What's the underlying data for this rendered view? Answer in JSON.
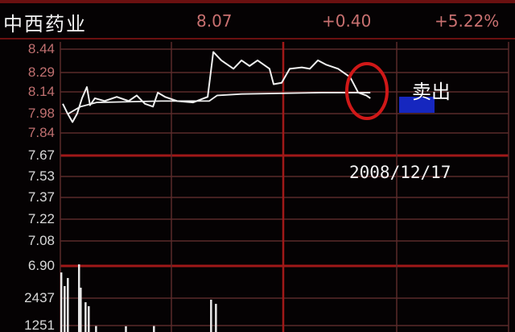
{
  "header": {
    "stock_name": "中西药业",
    "price": "8.07",
    "change": "+0.40",
    "change_pct": "+5.22%"
  },
  "annotation": {
    "label": "卖出",
    "date": "2008/12/17"
  },
  "colors": {
    "background": "#050203",
    "grid": "#5a2a2a",
    "grid_major": "#a01818",
    "price_line": "#f0f0f0",
    "circle": "#d01818",
    "marker": "#1a2ee0"
  },
  "chart_data": {
    "type": "line",
    "title": "",
    "xlabel": "",
    "ylabel": "",
    "x_range_minutes": [
      0,
      240
    ],
    "ylim": [
      6.9,
      8.44
    ],
    "y_tick_labels": [
      "8.44",
      "8.29",
      "8.14",
      "7.98",
      "7.84",
      "7.67",
      "7.53",
      "7.37",
      "7.22",
      "7.08",
      "6.90"
    ],
    "grid": true,
    "series": [
      {
        "points": [
          [
            1.3,
            8.05
          ],
          [
            3.9,
            7.98
          ],
          [
            6.5,
            7.92
          ],
          [
            9,
            7.98
          ],
          [
            11.6,
            8.09
          ],
          [
            14.2,
            8.17
          ],
          [
            15.9,
            8.04
          ],
          [
            18.5,
            8.09
          ],
          [
            23.7,
            8.07
          ],
          [
            30.2,
            8.1
          ],
          [
            36.6,
            8.07
          ],
          [
            40.9,
            8.11
          ],
          [
            45.3,
            8.05
          ],
          [
            49.6,
            8.03
          ],
          [
            52.2,
            8.13
          ],
          [
            56,
            8.1
          ],
          [
            62.5,
            8.07
          ],
          [
            71.1,
            8.06
          ],
          [
            78.9,
            8.1
          ],
          [
            81.9,
            8.42
          ],
          [
            86.2,
            8.36
          ],
          [
            92.7,
            8.3
          ],
          [
            97,
            8.36
          ],
          [
            101.3,
            8.32
          ],
          [
            105.6,
            8.36
          ],
          [
            112,
            8.3
          ],
          [
            114.2,
            8.19
          ],
          [
            118.5,
            8.2
          ],
          [
            122.8,
            8.3
          ],
          [
            129.3,
            8.31
          ],
          [
            133.6,
            8.3
          ],
          [
            137.9,
            8.36
          ],
          [
            142.2,
            8.33
          ],
          [
            148.7,
            8.3
          ],
          [
            155.2,
            8.24
          ],
          [
            159.5,
            8.13
          ],
          [
            163.8,
            8.11
          ],
          [
            166,
            8.09
          ]
        ]
      },
      {
        "points": [
          [
            4.3,
            7.98
          ],
          [
            10.8,
            8.03
          ],
          [
            19.4,
            8.06
          ],
          [
            53.9,
            8.07
          ],
          [
            79.7,
            8.07
          ],
          [
            84,
            8.11
          ],
          [
            97,
            8.12
          ],
          [
            140,
            8.13
          ],
          [
            166,
            8.13
          ]
        ]
      }
    ],
    "volume": {
      "y_tick_labels": [
        "2437",
        "1251"
      ],
      "bars": [
        [
          0.4,
          3550
        ],
        [
          2.2,
          2960
        ],
        [
          3.9,
          3310
        ],
        [
          9.9,
          3900
        ],
        [
          10.8,
          2890
        ],
        [
          13.4,
          2260
        ],
        [
          15.1,
          2090
        ],
        [
          19,
          1230
        ],
        [
          35,
          1220
        ],
        [
          50,
          1230
        ],
        [
          80.6,
          2370
        ],
        [
          83.2,
          2190
        ]
      ]
    }
  }
}
